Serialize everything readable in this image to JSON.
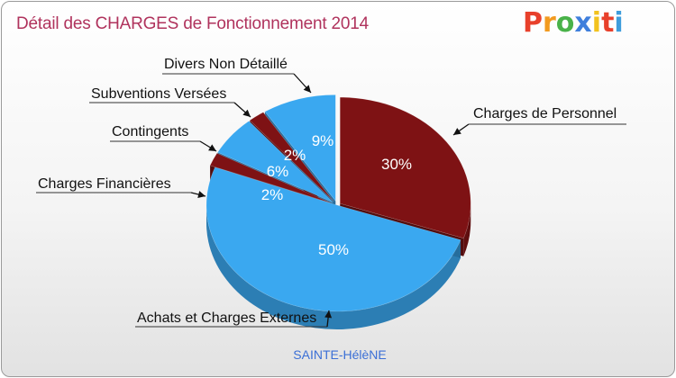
{
  "title": "Détail des CHARGES de Fonctionnement 2014",
  "logo": {
    "letters": [
      "P",
      "r",
      "o",
      "x",
      "i",
      "t",
      "i"
    ],
    "colors": [
      "#e8402b",
      "#f29a1f",
      "#49b249",
      "#3f7fdc",
      "#f2c21e",
      "#e8402b",
      "#3f9ddc"
    ]
  },
  "footer": "SAINTE-HélèNE",
  "colors": {
    "red_top": "#7e1214",
    "red_side": "#5a0709",
    "blue_top": "#3aa8f0",
    "blue_side": "#2687cc",
    "label_pct_light": "#ffffff",
    "label_pct_dark": "#15213a"
  },
  "chart_data": {
    "type": "pie",
    "title": "Détail des CHARGES de Fonctionnement 2014",
    "slices": [
      {
        "name": "Charges de Personnel",
        "value": 30,
        "label": "30%",
        "color": "#7e1214"
      },
      {
        "name": "Achats et Charges Externes",
        "value": 50,
        "label": "50%",
        "color": "#3aa8f0"
      },
      {
        "name": "Charges Financières",
        "value": 2,
        "label": "2%",
        "color": "#7e1214"
      },
      {
        "name": "Contingents",
        "value": 6,
        "label": "6%",
        "color": "#3aa8f0"
      },
      {
        "name": "Subventions Versées",
        "value": 2,
        "label": "2%",
        "color": "#7e1214"
      },
      {
        "name": "Divers Non Détaillé",
        "value": 9,
        "label": "9%",
        "color": "#3aa8f0"
      }
    ]
  }
}
